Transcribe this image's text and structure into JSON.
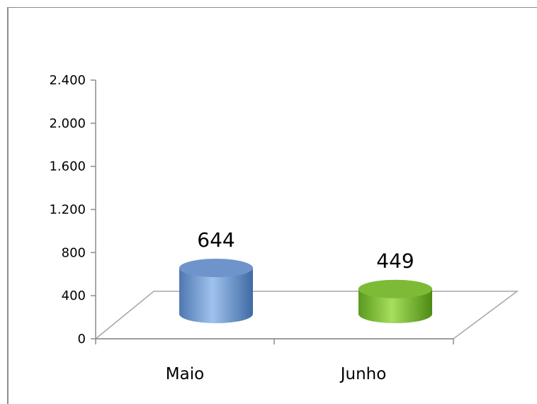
{
  "chart_data": {
    "type": "bar",
    "categories": [
      "Maio",
      "Junho"
    ],
    "values": [
      644,
      449
    ],
    "value_labels": [
      "644",
      "449"
    ],
    "ylim": [
      0,
      2400
    ],
    "yticks": [
      0,
      400,
      800,
      1200,
      1600,
      2000,
      2400
    ],
    "ytick_labels": [
      "0",
      "400",
      "800",
      "1.200",
      "1.600",
      "2.000",
      "2.400"
    ],
    "style": "3d-cylinder",
    "grid": false,
    "legend": "none",
    "colors": [
      "#8db3e2",
      "#92d050"
    ]
  }
}
